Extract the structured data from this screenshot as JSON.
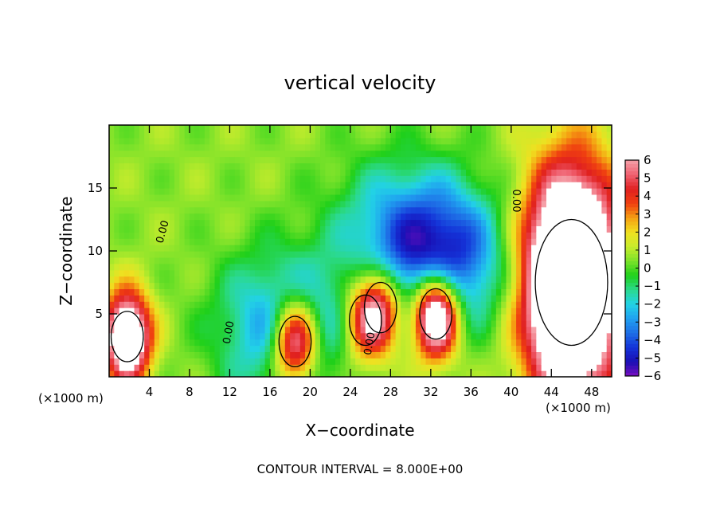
{
  "chart_data": {
    "type": "heatmap",
    "title": "vertical velocity",
    "xlabel": "X−coordinate",
    "ylabel": "Z−coordinate",
    "x_unit_label": "(×1000 m)",
    "footer": "CONTOUR INTERVAL = 8.000E+00",
    "xlim": [
      0,
      50
    ],
    "ylim": [
      0,
      20
    ],
    "x_ticks": [
      4,
      8,
      12,
      16,
      20,
      24,
      28,
      32,
      36,
      40,
      44,
      48
    ],
    "x_tick_labels": [
      "4",
      "8",
      "12",
      "16",
      "20",
      "24",
      "28",
      "32",
      "36",
      "40",
      "44",
      "48"
    ],
    "y_ticks": [
      5,
      10,
      15
    ],
    "y_tick_labels": [
      "5",
      "10",
      "15"
    ],
    "colorbar": {
      "min": -6,
      "max": 6,
      "ticks": [
        6,
        5,
        4,
        3,
        2,
        1,
        0,
        -1,
        -2,
        -3,
        -4,
        -5,
        -6
      ],
      "tick_labels": [
        "6",
        "5",
        "4",
        "3",
        "2",
        "1",
        "0",
        "−1",
        "−2",
        "−3",
        "−4",
        "−5",
        "−6"
      ],
      "over_range_color": "#ffffff"
    },
    "contour_labels": [
      "0.00",
      "0.00",
      "0.00",
      "0.00"
    ],
    "features": [
      {
        "kind": "updraft",
        "x": 1.8,
        "z": 3.2,
        "peak": 9
      },
      {
        "kind": "updraft",
        "x": 46,
        "z": 7.5,
        "peak": 14
      },
      {
        "kind": "updraft",
        "x": 27,
        "z": 5.5,
        "peak": 5
      },
      {
        "kind": "updraft",
        "x": 25.5,
        "z": 4.5,
        "peak": 4
      },
      {
        "kind": "updraft",
        "x": 18.5,
        "z": 2.8,
        "peak": 8
      },
      {
        "kind": "updraft",
        "x": 32.5,
        "z": 5,
        "peak": 10
      },
      {
        "kind": "downdraft",
        "x": 33,
        "z": 9.5,
        "peak": -5.5
      },
      {
        "kind": "downdraft",
        "x": 17.5,
        "z": 4,
        "peak": -4
      },
      {
        "kind": "downdraft",
        "x": 28,
        "z": 12,
        "peak": -2
      }
    ],
    "colors": {
      "gradient": [
        "#7a0fbf",
        "#1a0fb4",
        "#1433d8",
        "#1e6ee6",
        "#20a0f0",
        "#22d2e6",
        "#2bd98e",
        "#1fd01a",
        "#7be22a",
        "#c8ec2c",
        "#f0e020",
        "#f5a012",
        "#f04010",
        "#e02020",
        "#f06070",
        "#f5a0a8"
      ]
    }
  }
}
